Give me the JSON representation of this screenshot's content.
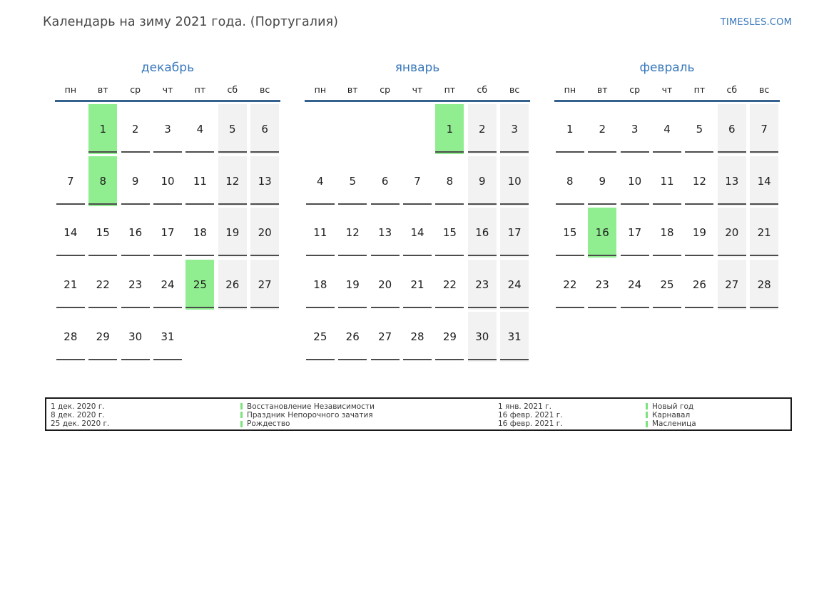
{
  "header": {
    "title": "Календарь на зиму 2021 года. (Португалия)",
    "site": "TIMESLES.COM"
  },
  "weekdays": [
    "пн",
    "вт",
    "ср",
    "чт",
    "пт",
    "сб",
    "вс"
  ],
  "months": [
    {
      "key": "december",
      "name": "декабрь",
      "holidays": [
        1,
        8,
        25
      ],
      "rows": [
        [
          "",
          1,
          2,
          3,
          4,
          5,
          6
        ],
        [
          7,
          8,
          9,
          10,
          11,
          12,
          13
        ],
        [
          14,
          15,
          16,
          17,
          18,
          19,
          20
        ],
        [
          21,
          22,
          23,
          24,
          25,
          26,
          27
        ],
        [
          28,
          29,
          30,
          31,
          "",
          "",
          ""
        ]
      ]
    },
    {
      "key": "january",
      "name": "январь",
      "holidays": [
        1
      ],
      "rows": [
        [
          "",
          "",
          "",
          "",
          1,
          2,
          3
        ],
        [
          4,
          5,
          6,
          7,
          8,
          9,
          10
        ],
        [
          11,
          12,
          13,
          14,
          15,
          16,
          17
        ],
        [
          18,
          19,
          20,
          21,
          22,
          23,
          24
        ],
        [
          25,
          26,
          27,
          28,
          29,
          30,
          31
        ]
      ]
    },
    {
      "key": "february",
      "name": "февраль",
      "holidays": [
        16
      ],
      "rows": [
        [
          1,
          2,
          3,
          4,
          5,
          6,
          7
        ],
        [
          8,
          9,
          10,
          11,
          12,
          13,
          14
        ],
        [
          15,
          16,
          17,
          18,
          19,
          20,
          21
        ],
        [
          22,
          23,
          24,
          25,
          26,
          27,
          28
        ]
      ]
    }
  ],
  "legend": {
    "columns": [
      {
        "dates": [
          "1 дек. 2020 г.",
          "8 дек. 2020 г.",
          "25 дек. 2020 г."
        ],
        "holidays": [
          "Восстановление Независимости",
          "Праздник Непорочного зачатия",
          "Рождество"
        ]
      },
      {
        "dates": [
          "1 янв. 2021 г.",
          "16 февр. 2021 г.",
          "16 февр. 2021 г."
        ],
        "holidays": [
          "Новый год",
          "Карнавал",
          "Масленица"
        ]
      }
    ]
  },
  "colors": {
    "blue_text": "#3878bb",
    "line_blue": "#35618f",
    "holiday_green": "#90ee90",
    "weekend_gray": "#f2f2f2",
    "underline": "#4c4c4c",
    "marker_green": "#7de17d"
  }
}
